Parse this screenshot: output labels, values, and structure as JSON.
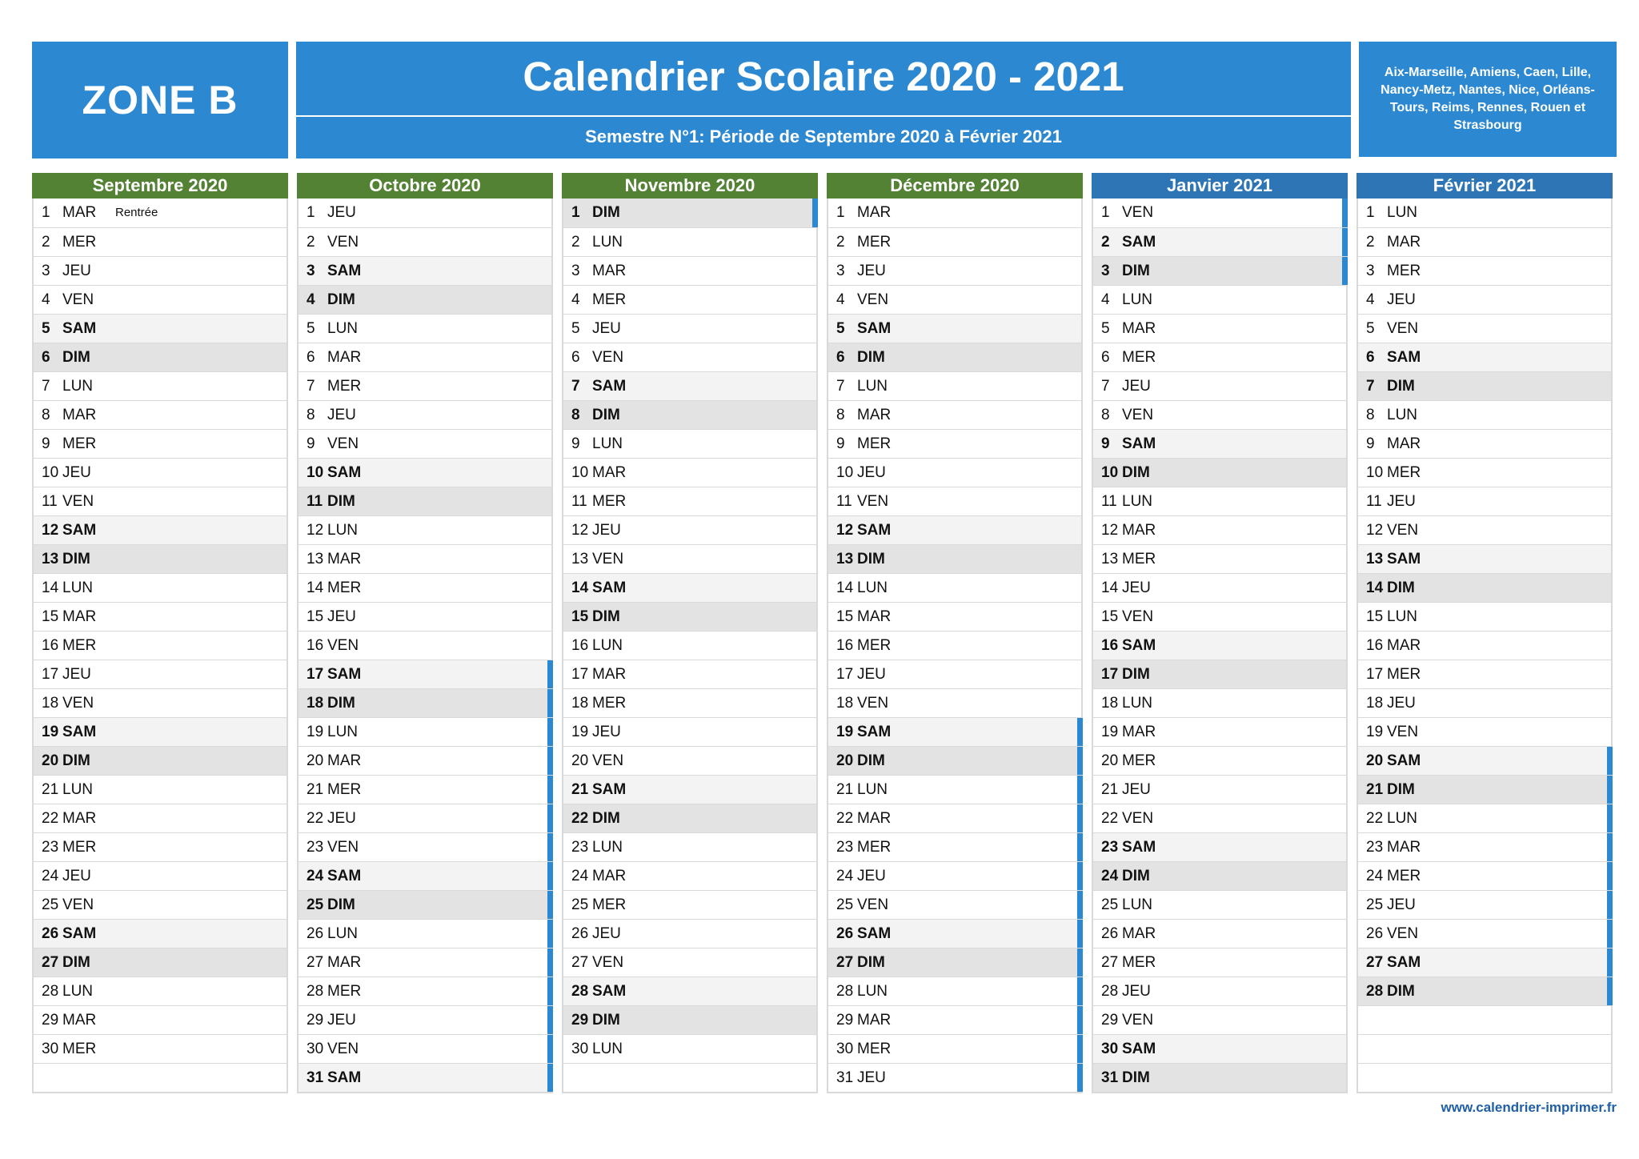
{
  "header": {
    "zone": "ZONE B",
    "title": "Calendrier Scolaire 2020 - 2021",
    "subtitle": "Semestre N°1: Période de Septembre 2020 à Février 2021",
    "regions": "Aix-Marseille, Amiens, Caen, Lille, Nancy-Metz, Nantes, Nice, Orléans-Tours, Reims, Rennes, Rouen et Strasbourg"
  },
  "colors": {
    "header_blue": "#2b88d1",
    "month_green": "#548235",
    "month_blue": "#2e75b6",
    "holiday_bar": "#2b88d1"
  },
  "footer": "www.calendrier-imprimer.fr",
  "months": [
    {
      "name": "Septembre 2020",
      "color": "green",
      "days": 30,
      "first_weekday": 1,
      "holidays": [],
      "notes": {
        "1": "Rentrée"
      }
    },
    {
      "name": "Octobre 2020",
      "color": "green",
      "days": 31,
      "first_weekday": 3,
      "holidays": [
        17,
        18,
        19,
        20,
        21,
        22,
        23,
        24,
        25,
        26,
        27,
        28,
        29,
        30,
        31
      ],
      "notes": {}
    },
    {
      "name": "Novembre 2020",
      "color": "green",
      "days": 30,
      "first_weekday": 6,
      "holidays": [
        1
      ],
      "notes": {}
    },
    {
      "name": "Décembre 2020",
      "color": "green",
      "days": 31,
      "first_weekday": 1,
      "holidays": [
        19,
        20,
        21,
        22,
        23,
        24,
        25,
        26,
        27,
        28,
        29,
        30,
        31
      ],
      "notes": {}
    },
    {
      "name": "Janvier 2021",
      "color": "blue",
      "days": 31,
      "first_weekday": 4,
      "holidays": [
        1,
        2,
        3
      ],
      "notes": {}
    },
    {
      "name": "Février 2021",
      "color": "blue",
      "days": 28,
      "first_weekday": 0,
      "holidays": [
        20,
        21,
        22,
        23,
        24,
        25,
        26,
        27,
        28
      ],
      "notes": {}
    }
  ],
  "weekday_names": [
    "LUN",
    "MAR",
    "MER",
    "JEU",
    "VEN",
    "SAM",
    "DIM"
  ]
}
